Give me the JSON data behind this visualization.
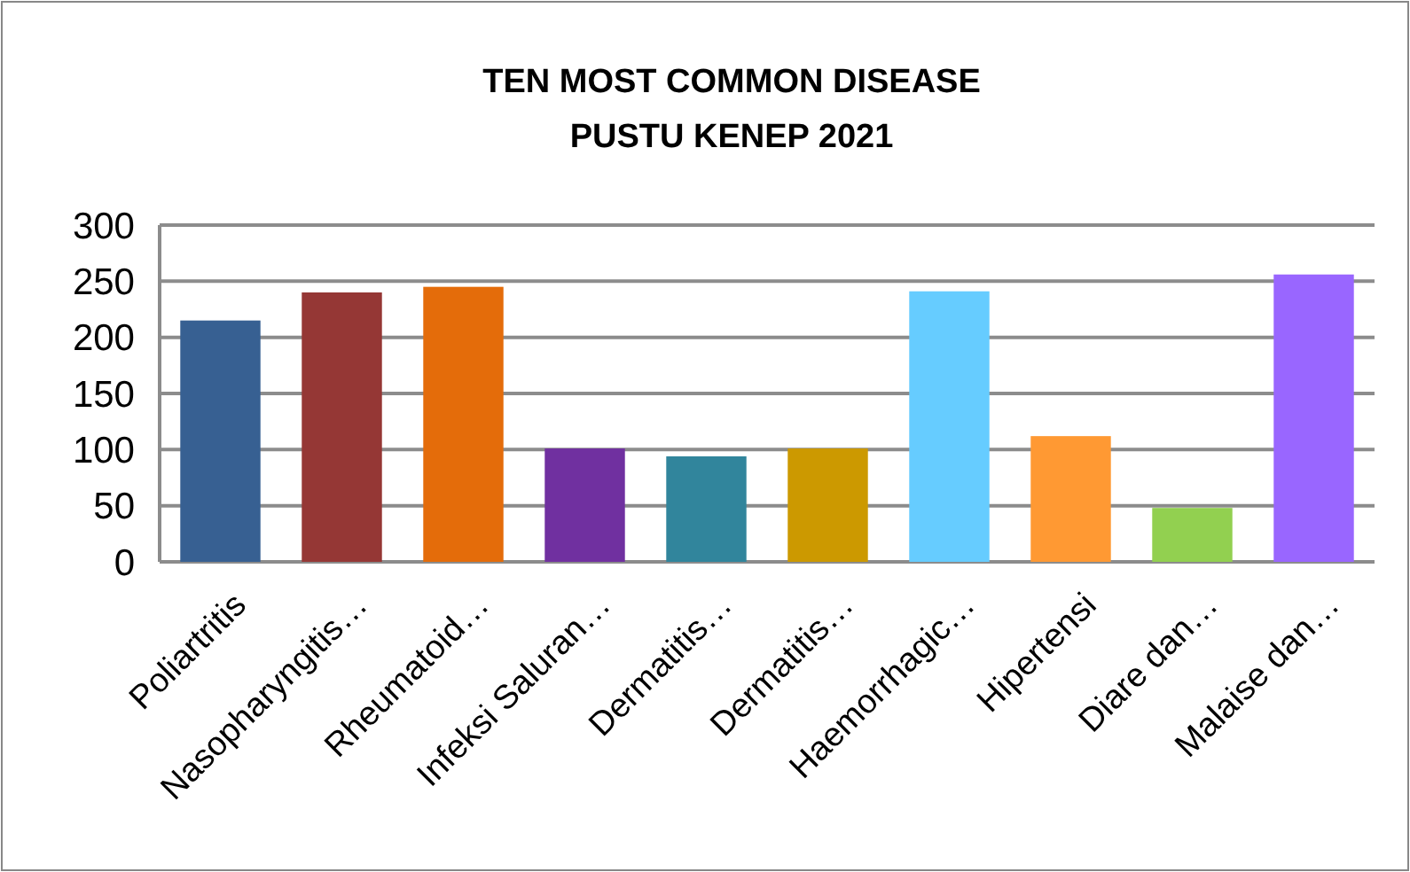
{
  "chart_data": {
    "type": "bar",
    "title": "TEN MOST COMMON DISEASE\nPUSTU KENEP 2021",
    "categories": [
      "Poliartritis",
      "Nasopharyngitis…",
      "Rheumatoid…",
      "Infeksi Saluran…",
      "Dermatitis…",
      "Dermatitis…",
      "Haemorrhagic…",
      "Hipertensi",
      "Diare dan…",
      "Malaise dan…"
    ],
    "values": [
      215,
      240,
      245,
      101,
      94,
      101,
      241,
      112,
      48,
      256
    ],
    "colors": [
      "#376092",
      "#953735",
      "#e46c0a",
      "#7030a0",
      "#31859c",
      "#cc9900",
      "#66ccff",
      "#ff9933",
      "#92d050",
      "#9966ff"
    ],
    "ylim": [
      0,
      300
    ],
    "yticks": [
      0,
      50,
      100,
      150,
      200,
      250,
      300
    ],
    "grid": "y"
  }
}
